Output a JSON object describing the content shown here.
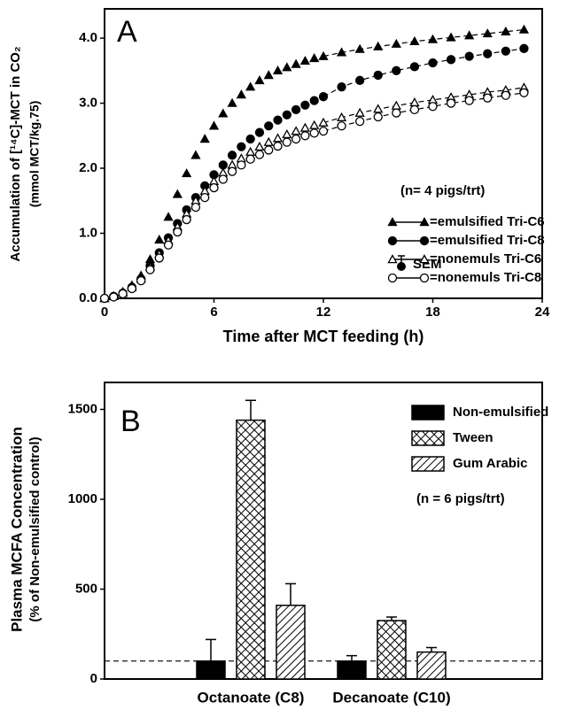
{
  "chart_data": [
    {
      "type": "line",
      "panel_label": "A",
      "xlabel": "Time after MCT feeding (h)",
      "ylabel": [
        "Accumulation of [¹⁴C]-MCT in CO₂",
        "(mmol MCT/kg.75)"
      ],
      "annotation": "(n= 4 pigs/trt)",
      "sem_label": "SEM",
      "x": [
        0,
        0.5,
        1,
        1.5,
        2,
        2.5,
        3,
        3.5,
        4,
        4.5,
        5,
        5.5,
        6,
        6.5,
        7,
        7.5,
        8,
        8.5,
        9,
        9.5,
        10,
        10.5,
        11,
        11.5,
        12,
        13,
        14,
        15,
        16,
        17,
        18,
        19,
        20,
        21,
        22,
        23
      ],
      "xlim": [
        0,
        24
      ],
      "xticks": [
        0,
        6,
        12,
        18,
        24
      ],
      "ylim": [
        0,
        4.45
      ],
      "yticks": [
        {
          "value": 0,
          "label": "0.0"
        },
        {
          "value": 1,
          "label": "1.0"
        },
        {
          "value": 2,
          "label": "2.0"
        },
        {
          "value": 3,
          "label": "3.0"
        },
        {
          "value": 4,
          "label": "4.0"
        }
      ],
      "series": [
        {
          "name": "=emulsified Tri-C6",
          "marker": "triangle",
          "filled": true,
          "color": "#000000",
          "values": [
            0,
            0.03,
            0.1,
            0.2,
            0.35,
            0.6,
            0.9,
            1.25,
            1.6,
            1.92,
            2.2,
            2.45,
            2.65,
            2.84,
            3.0,
            3.13,
            3.25,
            3.35,
            3.43,
            3.5,
            3.55,
            3.6,
            3.65,
            3.69,
            3.72,
            3.78,
            3.83,
            3.87,
            3.91,
            3.95,
            3.98,
            4.01,
            4.04,
            4.07,
            4.1,
            4.13
          ]
        },
        {
          "name": "=emulsified Tri-C8",
          "marker": "circle",
          "filled": true,
          "color": "#000000",
          "values": [
            0,
            0.03,
            0.08,
            0.17,
            0.3,
            0.5,
            0.7,
            0.93,
            1.15,
            1.36,
            1.55,
            1.73,
            1.9,
            2.05,
            2.2,
            2.33,
            2.45,
            2.55,
            2.65,
            2.74,
            2.82,
            2.9,
            2.97,
            3.04,
            3.1,
            3.25,
            3.35,
            3.43,
            3.5,
            3.56,
            3.62,
            3.67,
            3.72,
            3.76,
            3.8,
            3.84
          ]
        },
        {
          "name": "=nonemuls Tri-C6",
          "marker": "triangle",
          "filled": false,
          "color": "#000000",
          "values": [
            0,
            0.03,
            0.08,
            0.17,
            0.3,
            0.48,
            0.68,
            0.89,
            1.1,
            1.3,
            1.5,
            1.65,
            1.8,
            1.93,
            2.05,
            2.15,
            2.25,
            2.33,
            2.4,
            2.46,
            2.52,
            2.57,
            2.62,
            2.66,
            2.7,
            2.78,
            2.85,
            2.91,
            2.96,
            3.01,
            3.05,
            3.09,
            3.13,
            3.17,
            3.2,
            3.24
          ]
        },
        {
          "name": "=nonemuls Tri-C8",
          "marker": "circle",
          "filled": false,
          "color": "#000000",
          "values": [
            0,
            0.02,
            0.07,
            0.15,
            0.27,
            0.44,
            0.62,
            0.82,
            1.02,
            1.21,
            1.4,
            1.55,
            1.7,
            1.83,
            1.95,
            2.05,
            2.14,
            2.21,
            2.28,
            2.34,
            2.4,
            2.45,
            2.5,
            2.54,
            2.57,
            2.65,
            2.72,
            2.79,
            2.85,
            2.9,
            2.95,
            3.0,
            3.04,
            3.08,
            3.12,
            3.16
          ]
        }
      ]
    },
    {
      "type": "bar",
      "panel_label": "B",
      "ylabel": [
        "Plasma MCFA Concentration",
        "(% of Non-emulsified control)"
      ],
      "annotation": "(n = 6 pigs/trt)",
      "categories": [
        "Octanoate (C8)",
        "Decanoate (C10)"
      ],
      "ylim": [
        0,
        1650
      ],
      "yticks": [
        0,
        500,
        1000,
        1500
      ],
      "reference_line": 100,
      "series": [
        {
          "name": "Non-emulsified",
          "color": "#000000",
          "pattern": "solid",
          "values": [
            100,
            100
          ],
          "error": [
            120,
            30
          ]
        },
        {
          "name": "Tween",
          "color": "#000000",
          "pattern": "crosshatch",
          "values": [
            1440,
            325
          ],
          "error": [
            110,
            20
          ]
        },
        {
          "name": "Gum Arabic",
          "color": "#000000",
          "pattern": "diagonal",
          "values": [
            410,
            150
          ],
          "error": [
            120,
            25
          ]
        }
      ]
    }
  ]
}
